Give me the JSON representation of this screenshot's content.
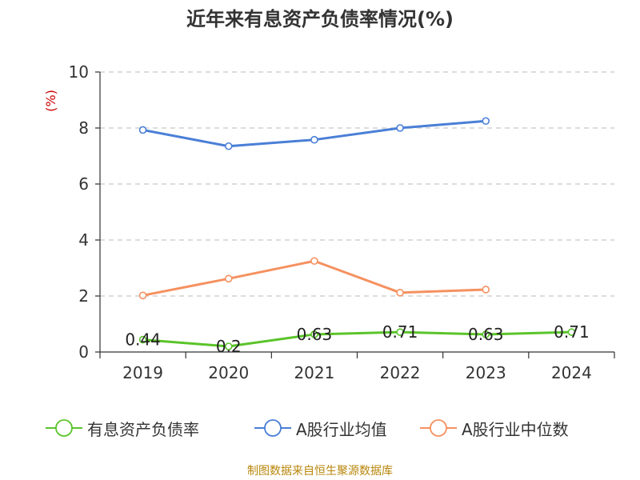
{
  "title": "近年来有息资产负债率情况(%)",
  "source": "制图数据来自恒生聚源数据库",
  "chart_data": {
    "type": "line",
    "title": "近年来有息资产负债率情况(%)",
    "ylabel": "(%)",
    "xlabel": "",
    "categories": [
      "2019",
      "2020",
      "2021",
      "2022",
      "2023",
      "2024"
    ],
    "ylim": [
      0,
      10
    ],
    "yticks": [
      0,
      2,
      4,
      6,
      8,
      10
    ],
    "grid": "horizontal-dashed",
    "legend_position": "bottom",
    "series": [
      {
        "name": "有息资产负债率",
        "color": "#5ac42a",
        "values": [
          0.44,
          0.2,
          0.63,
          0.71,
          0.63,
          0.71
        ],
        "data_labels": [
          "0.44",
          "0.2",
          "0.63",
          "0.71",
          "0.63",
          "0.71"
        ]
      },
      {
        "name": "A股行业均值",
        "color": "#4a7fd6",
        "values": [
          7.93,
          7.35,
          7.58,
          8.0,
          8.25,
          null
        ]
      },
      {
        "name": "A股行业中位数",
        "color": "#f59160",
        "values": [
          2.02,
          2.62,
          3.25,
          2.12,
          2.23,
          null
        ]
      }
    ]
  }
}
